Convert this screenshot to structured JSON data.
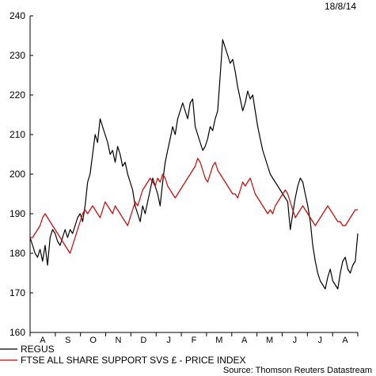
{
  "date_label": "18/8/14",
  "source": "Source: Thomson Reuters Datastream",
  "colors": {
    "regus": "#000000",
    "ftse": "#d40000"
  },
  "chart_data": {
    "type": "line",
    "title": "",
    "xlabel": "",
    "ylabel": "",
    "ylim": [
      160,
      240
    ],
    "yticks": [
      160,
      170,
      180,
      190,
      200,
      210,
      220,
      230,
      240
    ],
    "x_month_labels": [
      "A",
      "S",
      "O",
      "N",
      "D",
      "J",
      "F",
      "M",
      "A",
      "M",
      "J",
      "J",
      "A"
    ],
    "x_note": "x values are trading-day sequence across Aug 2013 - Aug 2014; month labels mark month midpoints",
    "legend": {
      "placement": "bottom-left"
    },
    "grid": false,
    "series": [
      {
        "name": "REGUS",
        "color": "#000000",
        "values": [
          184,
          182,
          180,
          179,
          181,
          178,
          182,
          177,
          184,
          186,
          185,
          183,
          182,
          184,
          186,
          184,
          186,
          185,
          187,
          189,
          190,
          188,
          192,
          198,
          200,
          205,
          210,
          208,
          214,
          212,
          210,
          208,
          205,
          206,
          203,
          207,
          205,
          202,
          203,
          200,
          198,
          196,
          192,
          190,
          188,
          192,
          190,
          193,
          196,
          199,
          197,
          195,
          192,
          198,
          203,
          206,
          209,
          212,
          210,
          214,
          216,
          218,
          216,
          214,
          218,
          219,
          212,
          210,
          208,
          206,
          207,
          209,
          212,
          211,
          214,
          216,
          225,
          234,
          232,
          230,
          228,
          229,
          226,
          222,
          219,
          216,
          218,
          221,
          219,
          220,
          216,
          212,
          209,
          206,
          204,
          202,
          200,
          199,
          198,
          197,
          196,
          195,
          194,
          193,
          186,
          190,
          194,
          197,
          199,
          198,
          195,
          192,
          188,
          182,
          178,
          175,
          173,
          172,
          171,
          174,
          176,
          173,
          172,
          171,
          175,
          178,
          179,
          176,
          175,
          177,
          178,
          185
        ]
      },
      {
        "name": "FTSE ALL SHARE SUPPORT SVS £ - PRICE INDEX",
        "color": "#d40000",
        "values": [
          184,
          184,
          185,
          186,
          187,
          189,
          190,
          189,
          188,
          187,
          186,
          185,
          184,
          183,
          182,
          181,
          180,
          182,
          184,
          186,
          188,
          190,
          191,
          190,
          191,
          192,
          191,
          190,
          189,
          191,
          193,
          192,
          191,
          190,
          192,
          191,
          190,
          189,
          188,
          187,
          189,
          191,
          193,
          192,
          194,
          196,
          197,
          198,
          199,
          198,
          197,
          199,
          198,
          200,
          199,
          197,
          196,
          195,
          194,
          195,
          196,
          197,
          198,
          199,
          200,
          201,
          202,
          204,
          203,
          201,
          199,
          198,
          200,
          202,
          203,
          201,
          200,
          199,
          198,
          197,
          196,
          195,
          195,
          194,
          196,
          198,
          197,
          198,
          199,
          197,
          195,
          194,
          193,
          192,
          191,
          190,
          191,
          190,
          192,
          193,
          194,
          195,
          196,
          195,
          193,
          191,
          189,
          190,
          191,
          192,
          191,
          190,
          189,
          188,
          187,
          188,
          189,
          190,
          191,
          192,
          191,
          190,
          189,
          188,
          188,
          187,
          187,
          188,
          189,
          190,
          191,
          191
        ]
      }
    ]
  }
}
